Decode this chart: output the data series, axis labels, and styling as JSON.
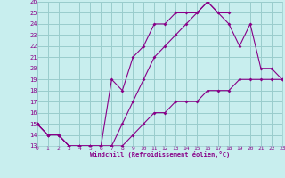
{
  "xlabel": "Windchill (Refroidissement éolien,°C)",
  "bg_color": "#c8eeee",
  "line_color": "#880088",
  "grid_color": "#99cccc",
  "xmin": 0,
  "xmax": 23,
  "ymin": 13,
  "ymax": 26,
  "line1_x": [
    0,
    1,
    2,
    3,
    4,
    5,
    6,
    7,
    8,
    9,
    10,
    11,
    12,
    13,
    14,
    15,
    16,
    17,
    18
  ],
  "line1_y": [
    15,
    14,
    14,
    13,
    13,
    13,
    13,
    19,
    18,
    21,
    22,
    24,
    24,
    25,
    25,
    25,
    26,
    25,
    25
  ],
  "line2_x": [
    0,
    1,
    2,
    3,
    4,
    5,
    6,
    7,
    8,
    9,
    10,
    11,
    12,
    13,
    14,
    15,
    16,
    17,
    18,
    19,
    20,
    21,
    22,
    23
  ],
  "line2_y": [
    15,
    14,
    14,
    13,
    13,
    13,
    13,
    13,
    13,
    14,
    15,
    16,
    16,
    17,
    17,
    17,
    18,
    18,
    18,
    19,
    19,
    19,
    19,
    19
  ],
  "line3_x": [
    0,
    1,
    2,
    3,
    4,
    5,
    6,
    7,
    8,
    9,
    10,
    11,
    12,
    13,
    14,
    15,
    16,
    17,
    18,
    19,
    20,
    21,
    22,
    23
  ],
  "line3_y": [
    15,
    14,
    14,
    13,
    13,
    13,
    13,
    13,
    15,
    17,
    19,
    21,
    22,
    23,
    24,
    25,
    26,
    25,
    24,
    22,
    24,
    20,
    20,
    19
  ]
}
